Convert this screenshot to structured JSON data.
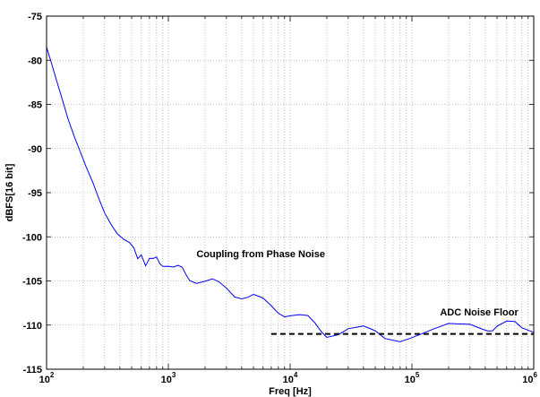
{
  "chart_data": {
    "type": "line",
    "title": "",
    "xlabel": "Freq [Hz]",
    "ylabel": "dBFS[16 bit]",
    "xscale": "log",
    "xlim": [
      100,
      1000000
    ],
    "ylim": [
      -115,
      -75
    ],
    "grid": true,
    "x_tick_labels": [
      {
        "base": "10",
        "exp": "2"
      },
      {
        "base": "10",
        "exp": "3"
      },
      {
        "base": "10",
        "exp": "4"
      },
      {
        "base": "10",
        "exp": "5"
      },
      {
        "base": "10",
        "exp": "6"
      }
    ],
    "y_ticks": [
      -75,
      -80,
      -85,
      -90,
      -95,
      -100,
      -105,
      -110,
      -115
    ],
    "y_tick_labels": [
      "-75",
      "-80",
      "-85",
      "-90",
      "-95",
      "-100",
      "-105",
      "-110",
      "-115"
    ],
    "colors": {
      "series": "#0000ff",
      "floor": "#000000",
      "grid": "#999999"
    },
    "series": [
      {
        "style": "solid",
        "color": "#0000ff",
        "x": [
          100,
          110,
          120,
          135,
          150,
          170,
          190,
          210,
          240,
          270,
          300,
          340,
          380,
          430,
          480,
          520,
          560,
          600,
          650,
          700,
          750,
          800,
          850,
          900,
          1000,
          1100,
          1200,
          1300,
          1400,
          1500,
          1700,
          2000,
          2300,
          2600,
          3000,
          3500,
          4000,
          4500,
          5000,
          6000,
          7000,
          8000,
          9000,
          10000,
          12000,
          14000,
          16000,
          18000,
          20000,
          25000,
          30000,
          40000,
          50000,
          60000,
          80000,
          100000,
          150000,
          200000,
          300000,
          380000,
          420000,
          460000,
          500000,
          600000,
          700000,
          800000,
          1000000
        ],
        "y": [
          -78.5,
          -80.5,
          -82.3,
          -84.5,
          -86.5,
          -88.6,
          -90.4,
          -92.1,
          -94.0,
          -95.8,
          -97.2,
          -98.5,
          -99.6,
          -100.5,
          -101.0,
          -101.4,
          -102.3,
          -101.7,
          -103.1,
          -102.6,
          -102.8,
          -102.5,
          -102.9,
          -103.0,
          -103.1,
          -103.6,
          -103.8,
          -103.9,
          -104.2,
          -104.4,
          -104.8,
          -105.1,
          -105.3,
          -105.6,
          -105.8,
          -106.3,
          -106.5,
          -106.8,
          -107.0,
          -107.5,
          -107.9,
          -108.2,
          -108.5,
          -108.8,
          -109.3,
          -109.6,
          -110.0,
          -110.3,
          -110.5,
          -110.7,
          -110.9,
          -111.0,
          -111.1,
          -111.1,
          -111.0,
          -110.9,
          -110.8,
          -110.7,
          -110.5,
          -110.2,
          -109.8,
          -110.0,
          -110.3,
          -110.4,
          -110.3,
          -110.2,
          -110.0
        ]
      },
      {
        "style": "dashed",
        "color": "#000000",
        "x": [
          7000,
          1000000
        ],
        "y": [
          -111,
          -111
        ]
      }
    ],
    "annotations": [
      {
        "text": "Coupling from Phase Noise",
        "x": 1700,
        "y": -102.3
      },
      {
        "text": "ADC Noise Floor",
        "x": 170000,
        "y": -108.9
      }
    ]
  }
}
